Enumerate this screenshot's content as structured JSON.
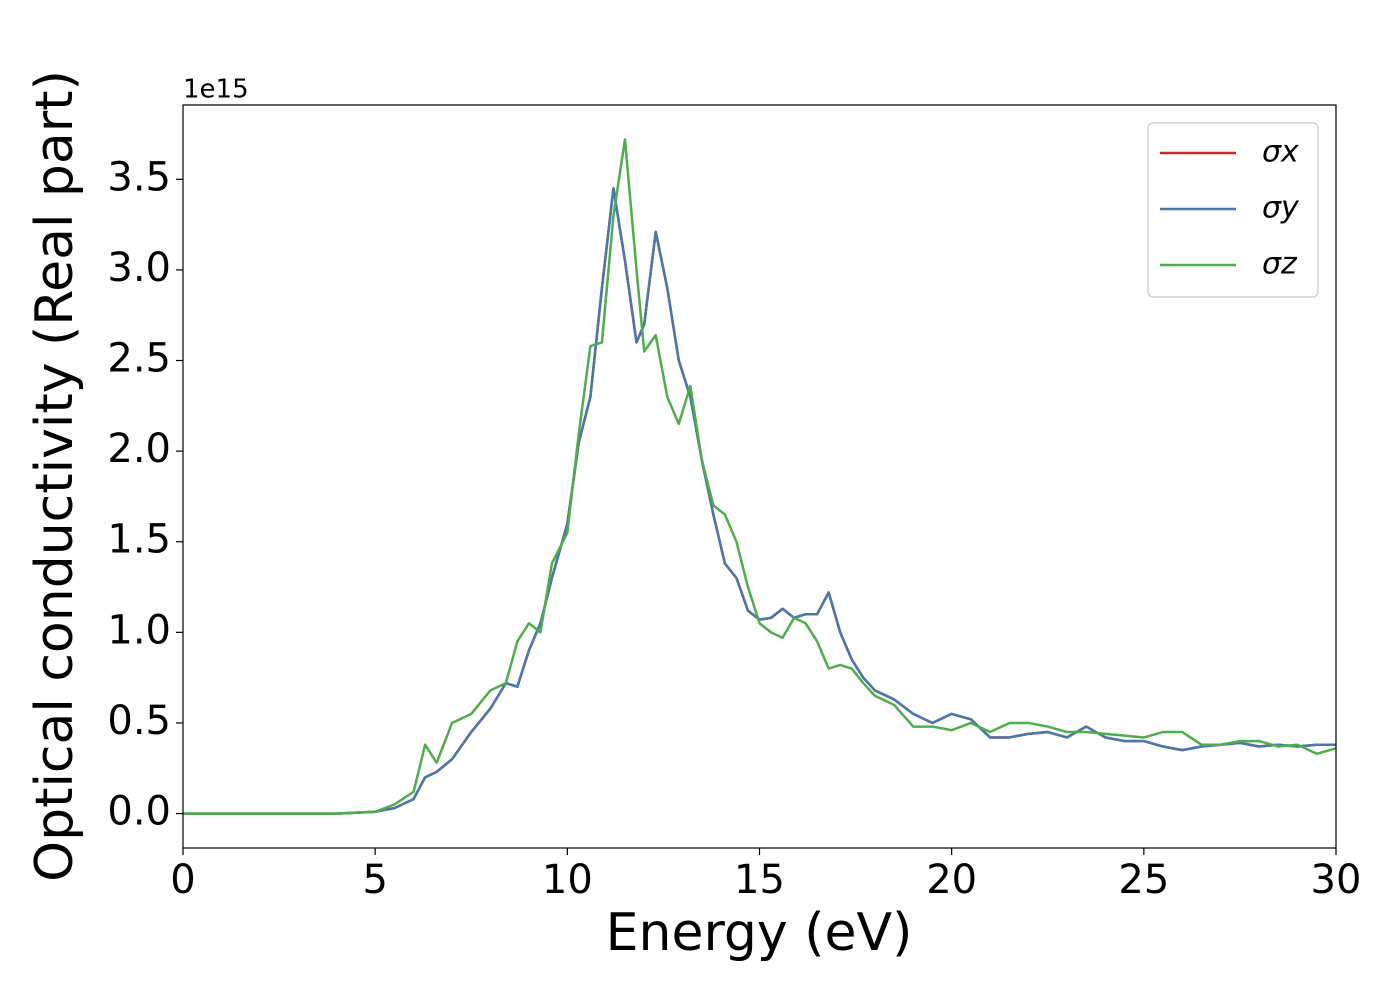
{
  "chart_data": {
    "type": "line",
    "xlabel": "Energy (eV)",
    "ylabel": "Optical conductivity (Real part)",
    "y_offset_label": "1e15",
    "x": [
      0,
      2,
      4,
      5,
      5.5,
      6,
      6.3,
      6.6,
      7,
      7.5,
      8,
      8.4,
      8.7,
      9,
      9.3,
      9.6,
      10,
      10.3,
      10.6,
      10.9,
      11.2,
      11.5,
      11.8,
      12,
      12.3,
      12.6,
      12.9,
      13.2,
      13.5,
      13.8,
      14.1,
      14.4,
      14.7,
      15,
      15.3,
      15.6,
      15.9,
      16.2,
      16.5,
      16.8,
      17.1,
      17.4,
      17.7,
      18,
      18.5,
      19,
      19.5,
      20,
      20.5,
      21,
      21.5,
      22,
      22.5,
      23,
      23.5,
      24,
      24.5,
      25,
      25.5,
      26,
      26.5,
      27,
      27.5,
      28,
      28.5,
      29,
      29.5,
      30
    ],
    "series": [
      {
        "name": "σx",
        "color": "#d62728",
        "values": [
          0,
          0,
          0,
          0.01,
          0.03,
          0.08,
          0.2,
          0.23,
          0.3,
          0.45,
          0.58,
          0.72,
          0.7,
          0.9,
          1.05,
          1.3,
          1.6,
          2.05,
          2.3,
          2.9,
          3.45,
          3.05,
          2.6,
          2.7,
          3.21,
          2.9,
          2.5,
          2.3,
          1.95,
          1.65,
          1.38,
          1.3,
          1.12,
          1.07,
          1.08,
          1.13,
          1.08,
          1.1,
          1.1,
          1.22,
          1.0,
          0.85,
          0.75,
          0.68,
          0.63,
          0.55,
          0.5,
          0.55,
          0.52,
          0.42,
          0.42,
          0.44,
          0.45,
          0.42,
          0.48,
          0.42,
          0.4,
          0.4,
          0.37,
          0.35,
          0.37,
          0.38,
          0.39,
          0.37,
          0.38,
          0.37,
          0.38,
          0.38
        ]
      },
      {
        "name": "σy",
        "color": "#4878b0",
        "values": [
          0,
          0,
          0,
          0.01,
          0.03,
          0.08,
          0.2,
          0.23,
          0.3,
          0.45,
          0.58,
          0.72,
          0.7,
          0.9,
          1.05,
          1.3,
          1.6,
          2.05,
          2.3,
          2.9,
          3.45,
          3.05,
          2.6,
          2.7,
          3.21,
          2.9,
          2.5,
          2.3,
          1.95,
          1.65,
          1.38,
          1.3,
          1.12,
          1.07,
          1.08,
          1.13,
          1.08,
          1.1,
          1.1,
          1.22,
          1.0,
          0.85,
          0.75,
          0.68,
          0.63,
          0.55,
          0.5,
          0.55,
          0.52,
          0.42,
          0.42,
          0.44,
          0.45,
          0.42,
          0.48,
          0.42,
          0.4,
          0.4,
          0.37,
          0.35,
          0.37,
          0.38,
          0.39,
          0.37,
          0.38,
          0.37,
          0.38,
          0.38
        ]
      },
      {
        "name": "σz",
        "color": "#4daf4a",
        "values": [
          0,
          0,
          0,
          0.01,
          0.05,
          0.12,
          0.38,
          0.28,
          0.5,
          0.55,
          0.68,
          0.72,
          0.95,
          1.05,
          1.0,
          1.38,
          1.55,
          2.1,
          2.58,
          2.6,
          3.3,
          3.72,
          3.0,
          2.55,
          2.64,
          2.3,
          2.15,
          2.36,
          1.95,
          1.7,
          1.65,
          1.5,
          1.25,
          1.05,
          1.0,
          0.97,
          1.08,
          1.05,
          0.95,
          0.8,
          0.82,
          0.8,
          0.72,
          0.65,
          0.6,
          0.48,
          0.48,
          0.46,
          0.5,
          0.45,
          0.5,
          0.5,
          0.48,
          0.45,
          0.45,
          0.44,
          0.43,
          0.42,
          0.45,
          0.45,
          0.38,
          0.38,
          0.4,
          0.4,
          0.37,
          0.38,
          0.33,
          0.36
        ]
      }
    ],
    "xlim": [
      0,
      30
    ],
    "xticks": [
      0,
      5,
      10,
      15,
      20,
      25,
      30
    ],
    "ylim": [
      -0.19,
      3.91
    ],
    "yticks": [
      {
        "value": 0,
        "label": "0.0"
      },
      0.5,
      {
        "value": 1,
        "label": "1.0"
      },
      1.5,
      {
        "value": 2,
        "label": "2.0"
      },
      2.5,
      {
        "value": 3,
        "label": "3.0"
      },
      3.5
    ],
    "legend": "upper right",
    "grid": false
  }
}
